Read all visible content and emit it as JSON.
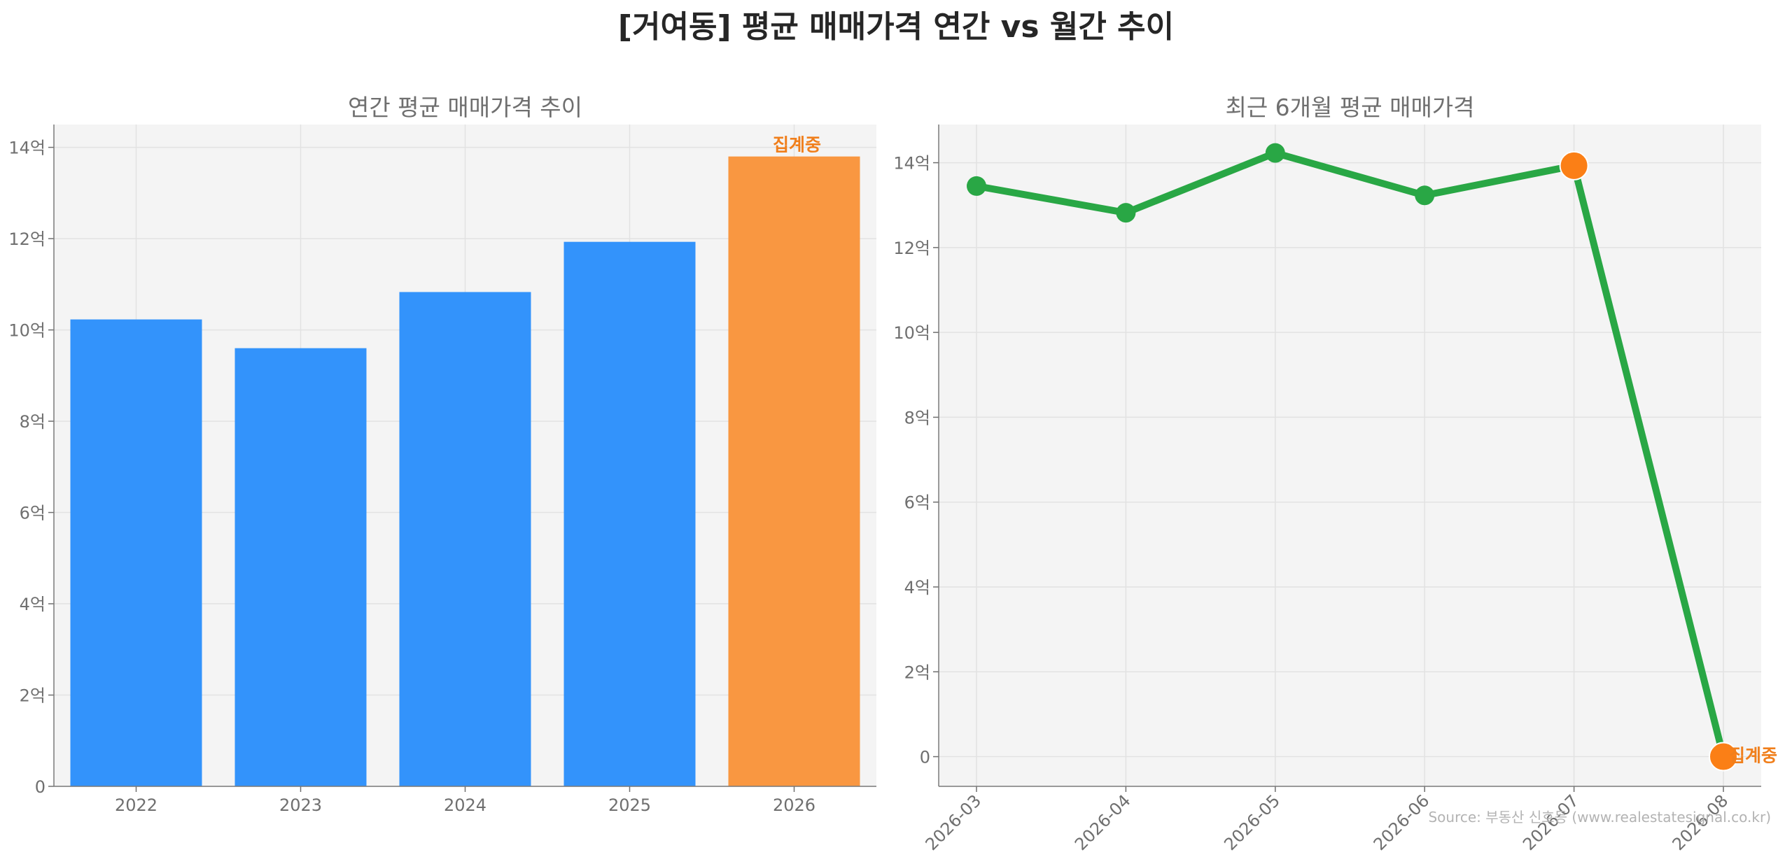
{
  "title": "[거여동] 평균 매매가격 연간 vs 월간 추이",
  "source": "Source: 부동산 신호등 (www.realestatesignal.co.kr)",
  "colors": {
    "blue": "#3393fb",
    "orange": "#f99741",
    "green": "#29a745",
    "orange_marker": "#fb7f16"
  },
  "chart_data": [
    {
      "type": "bar",
      "title": "연간 평균 매매가격 추이",
      "categories": [
        "2022",
        "2023",
        "2024",
        "2025",
        "2026"
      ],
      "values": [
        10.23,
        9.6,
        10.83,
        11.93,
        13.8
      ],
      "unit": "억",
      "highlight": {
        "category": "2026",
        "label": "집계중"
      },
      "ylim": [
        0,
        14.5
      ],
      "yticks": [
        0,
        2,
        4,
        6,
        8,
        10,
        12,
        14
      ],
      "ytick_labels": [
        "0",
        "2억",
        "4억",
        "6억",
        "8억",
        "10억",
        "12억",
        "14억"
      ],
      "grid": true
    },
    {
      "type": "line",
      "title": "최근 6개월 평균 매매가격",
      "categories": [
        "2026-03",
        "2026-04",
        "2026-05",
        "2026-06",
        "2026-07",
        "2026-08"
      ],
      "values": [
        13.45,
        12.82,
        14.23,
        13.23,
        13.93,
        0
      ],
      "unit": "억",
      "highlight_points": [
        "2026-07",
        "2026-08"
      ],
      "highlight_label": {
        "category": "2026-08",
        "label": "집계중"
      },
      "ylim": [
        -0.7,
        14.9
      ],
      "yticks": [
        0,
        2,
        4,
        6,
        8,
        10,
        12,
        14
      ],
      "ytick_labels": [
        "0",
        "2억",
        "4억",
        "6억",
        "8억",
        "10억",
        "12억",
        "14억"
      ],
      "grid": true
    }
  ]
}
